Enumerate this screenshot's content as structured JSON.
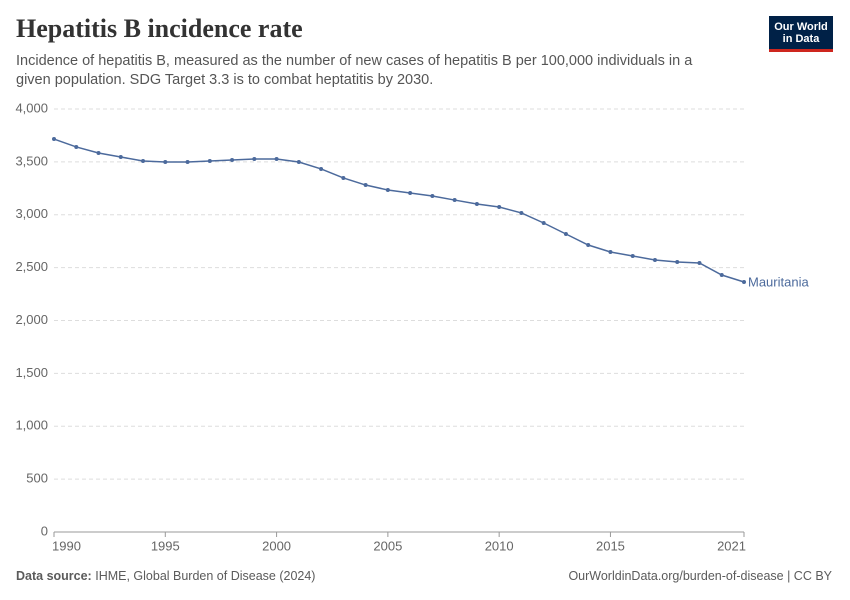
{
  "chart_data": {
    "type": "line",
    "title": "Hepatitis B incidence rate",
    "subtitle": "Incidence of hepatitis B, measured as the number of new cases of hepatitis B per 100,000 individuals in a given population. SDG Target 3.3 is to combat heptatitis by 2030.",
    "source_label": "Data source:",
    "source": "IHME, Global Burden of Disease (2024)",
    "url": "OurWorldinData.org/burden-of-disease | CC BY",
    "logo": "Our World in Data",
    "x": [
      1990,
      1991,
      1992,
      1993,
      1994,
      1995,
      1996,
      1997,
      1998,
      1999,
      2000,
      2001,
      2002,
      2003,
      2004,
      2005,
      2006,
      2007,
      2008,
      2009,
      2010,
      2011,
      2012,
      2013,
      2014,
      2015,
      2016,
      2017,
      2018,
      2019,
      2020,
      2021
    ],
    "series": [
      {
        "name": "Mauritania",
        "color": "#4c6a9c",
        "values": [
          3716,
          3641,
          3584,
          3546,
          3508,
          3499,
          3499,
          3508,
          3518,
          3527,
          3527,
          3499,
          3433,
          3348,
          3281,
          3234,
          3206,
          3177,
          3139,
          3102,
          3073,
          3017,
          2922,
          2818,
          2714,
          2648,
          2610,
          2572,
          2553,
          2544,
          2430,
          2364
        ]
      }
    ],
    "xlim": [
      1990,
      2021
    ],
    "xticks": [
      1990,
      1995,
      2000,
      2005,
      2010,
      2015,
      2021
    ],
    "ylim": [
      0,
      4000
    ],
    "yticks": [
      0,
      500,
      {
        "value": 1000,
        "label": "1,000"
      },
      {
        "value": 1500,
        "label": "1,500"
      },
      {
        "value": 2000,
        "label": "2,000"
      },
      {
        "value": 2500,
        "label": "2,500"
      },
      {
        "value": 3000,
        "label": "3,000"
      },
      {
        "value": 3500,
        "label": "3,500"
      },
      {
        "value": 4000,
        "label": "4,000"
      }
    ],
    "grid": true
  }
}
